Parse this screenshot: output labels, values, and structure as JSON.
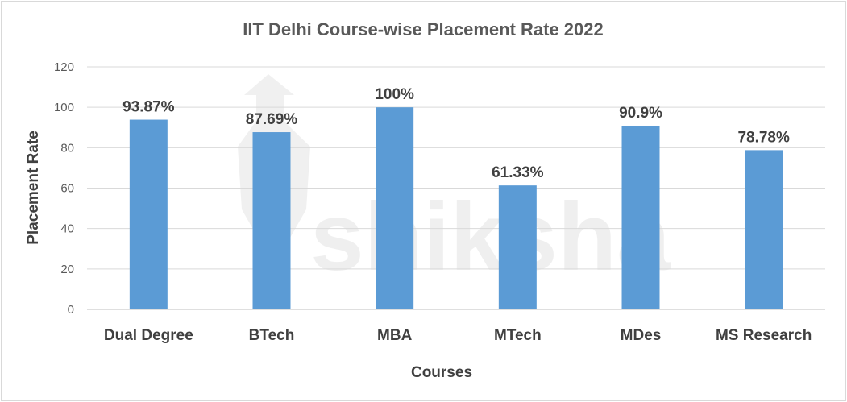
{
  "chart_data": {
    "type": "bar",
    "title": "IIT Delhi Course-wise Placement Rate 2022",
    "xlabel": "Courses",
    "ylabel": "Placement Rate",
    "categories": [
      "Dual Degree",
      "BTech",
      "MBA",
      "MTech",
      "MDes",
      "MS Research"
    ],
    "values": [
      93.87,
      87.69,
      100,
      61.33,
      90.9,
      78.78
    ],
    "data_labels": [
      "93.87%",
      "87.69%",
      "100%",
      "61.33%",
      "90.9%",
      "78.78%"
    ],
    "ylim": [
      0,
      120
    ],
    "yticks": [
      "0",
      "20",
      "40",
      "60",
      "80",
      "100",
      "120"
    ],
    "grid": true,
    "bar_color": "#5b9bd5",
    "watermark": "shiksha"
  }
}
